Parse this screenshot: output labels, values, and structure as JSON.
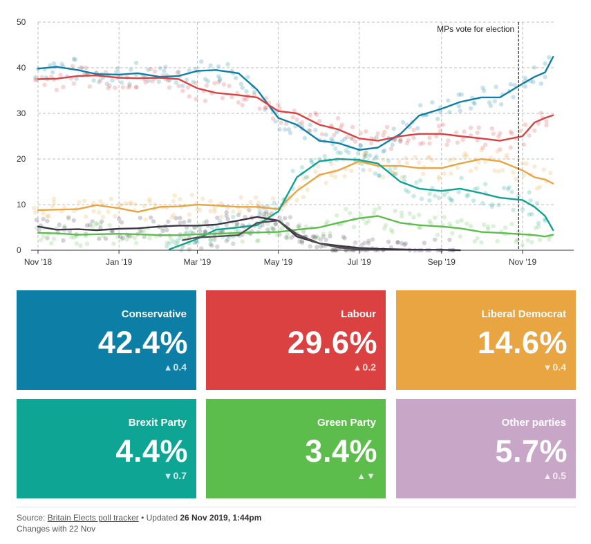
{
  "chart_data": {
    "type": "line",
    "title": "",
    "xlabel": "",
    "ylabel": "",
    "ylim": [
      0,
      50
    ],
    "y_ticks": [
      "0",
      "10",
      "20",
      "30",
      "40",
      "50"
    ],
    "x_tick_labels": [
      "Nov '18",
      "Jan '19",
      "Mar '19",
      "May '19",
      "Jul '19",
      "Sep '19",
      "Nov '19"
    ],
    "x_tick_dates": [
      "2018-11-01",
      "2019-01-01",
      "2019-03-01",
      "2019-05-01",
      "2019-07-01",
      "2019-09-01",
      "2019-11-01"
    ],
    "xlim": [
      "2018-11-01",
      "2019-11-26"
    ],
    "grid": true,
    "annotation": {
      "label": "MPs vote for election",
      "date": "2019-10-29"
    },
    "series": [
      {
        "name": "Conservative",
        "color": "#0d7ea6",
        "points": [
          [
            "2018-11-01",
            39.8
          ],
          [
            "2018-11-15",
            40.2
          ],
          [
            "2018-12-01",
            39.5
          ],
          [
            "2018-12-15",
            38.6
          ],
          [
            "2019-01-01",
            38.5
          ],
          [
            "2019-01-15",
            38.8
          ],
          [
            "2019-02-01",
            38.0
          ],
          [
            "2019-02-15",
            38.2
          ],
          [
            "2019-03-01",
            39.3
          ],
          [
            "2019-03-15",
            39.5
          ],
          [
            "2019-04-01",
            38.8
          ],
          [
            "2019-04-15",
            35.2
          ],
          [
            "2019-05-01",
            29.0
          ],
          [
            "2019-05-15",
            27.5
          ],
          [
            "2019-06-01",
            24.0
          ],
          [
            "2019-06-15",
            23.5
          ],
          [
            "2019-07-01",
            22.0
          ],
          [
            "2019-07-15",
            22.5
          ],
          [
            "2019-08-01",
            25.5
          ],
          [
            "2019-08-15",
            29.5
          ],
          [
            "2019-09-01",
            31.0
          ],
          [
            "2019-09-15",
            32.5
          ],
          [
            "2019-10-01",
            33.5
          ],
          [
            "2019-10-15",
            33.5
          ],
          [
            "2019-11-01",
            36.5
          ],
          [
            "2019-11-10",
            38.0
          ],
          [
            "2019-11-18",
            39.0
          ],
          [
            "2019-11-24",
            42.4
          ]
        ]
      },
      {
        "name": "Labour",
        "color": "#d94242",
        "points": [
          [
            "2018-11-01",
            37.5
          ],
          [
            "2018-11-15",
            37.6
          ],
          [
            "2018-12-01",
            38.2
          ],
          [
            "2018-12-15",
            38.3
          ],
          [
            "2019-01-01",
            37.8
          ],
          [
            "2019-01-15",
            37.7
          ],
          [
            "2019-02-01",
            37.8
          ],
          [
            "2019-02-15",
            37.5
          ],
          [
            "2019-03-01",
            35.5
          ],
          [
            "2019-03-15",
            34.5
          ],
          [
            "2019-04-01",
            34.0
          ],
          [
            "2019-04-15",
            33.5
          ],
          [
            "2019-05-01",
            30.5
          ],
          [
            "2019-05-15",
            30.0
          ],
          [
            "2019-06-01",
            27.5
          ],
          [
            "2019-06-15",
            26.5
          ],
          [
            "2019-07-01",
            24.5
          ],
          [
            "2019-07-15",
            24.0
          ],
          [
            "2019-08-01",
            25.0
          ],
          [
            "2019-08-15",
            25.5
          ],
          [
            "2019-09-01",
            25.5
          ],
          [
            "2019-09-15",
            25.0
          ],
          [
            "2019-10-01",
            24.5
          ],
          [
            "2019-10-15",
            24.0
          ],
          [
            "2019-11-01",
            25.0
          ],
          [
            "2019-11-10",
            28.0
          ],
          [
            "2019-11-18",
            29.0
          ],
          [
            "2019-11-24",
            29.6
          ]
        ]
      },
      {
        "name": "Liberal Democrat",
        "color": "#e8a541",
        "points": [
          [
            "2018-11-01",
            8.8
          ],
          [
            "2018-11-15",
            8.9
          ],
          [
            "2018-12-01",
            9.0
          ],
          [
            "2018-12-15",
            9.9
          ],
          [
            "2019-01-01",
            9.2
          ],
          [
            "2019-01-15",
            8.4
          ],
          [
            "2019-02-01",
            9.5
          ],
          [
            "2019-02-15",
            9.6
          ],
          [
            "2019-03-01",
            10.0
          ],
          [
            "2019-03-15",
            9.8
          ],
          [
            "2019-04-01",
            9.5
          ],
          [
            "2019-04-15",
            9.5
          ],
          [
            "2019-05-01",
            9.0
          ],
          [
            "2019-05-15",
            13.0
          ],
          [
            "2019-06-01",
            16.5
          ],
          [
            "2019-06-15",
            17.5
          ],
          [
            "2019-07-01",
            19.5
          ],
          [
            "2019-07-15",
            18.5
          ],
          [
            "2019-08-01",
            18.5
          ],
          [
            "2019-08-15",
            18.0
          ],
          [
            "2019-09-01",
            18.0
          ],
          [
            "2019-09-15",
            19.0
          ],
          [
            "2019-10-01",
            20.0
          ],
          [
            "2019-10-15",
            19.5
          ],
          [
            "2019-11-01",
            17.5
          ],
          [
            "2019-11-10",
            16.0
          ],
          [
            "2019-11-18",
            15.5
          ],
          [
            "2019-11-24",
            14.6
          ]
        ]
      },
      {
        "name": "Brexit Party",
        "color": "#0fa193",
        "points": [
          [
            "2019-02-08",
            0.2
          ],
          [
            "2019-02-20",
            1.5
          ],
          [
            "2019-03-01",
            2.5
          ],
          [
            "2019-03-15",
            4.5
          ],
          [
            "2019-04-01",
            5.0
          ],
          [
            "2019-04-15",
            5.5
          ],
          [
            "2019-05-01",
            8.5
          ],
          [
            "2019-05-15",
            16.0
          ],
          [
            "2019-06-01",
            19.5
          ],
          [
            "2019-06-15",
            20.0
          ],
          [
            "2019-07-01",
            19.8
          ],
          [
            "2019-07-15",
            19.0
          ],
          [
            "2019-08-01",
            15.0
          ],
          [
            "2019-08-15",
            13.5
          ],
          [
            "2019-09-01",
            13.0
          ],
          [
            "2019-09-15",
            13.5
          ],
          [
            "2019-10-01",
            12.5
          ],
          [
            "2019-10-15",
            11.5
          ],
          [
            "2019-11-01",
            11.0
          ],
          [
            "2019-11-10",
            9.5
          ],
          [
            "2019-11-18",
            7.5
          ],
          [
            "2019-11-24",
            4.4
          ]
        ]
      },
      {
        "name": "Green Party",
        "color": "#5dbd4c",
        "points": [
          [
            "2018-11-01",
            3.8
          ],
          [
            "2018-11-15",
            3.7
          ],
          [
            "2018-12-01",
            3.4
          ],
          [
            "2018-12-15",
            3.5
          ],
          [
            "2019-01-01",
            3.6
          ],
          [
            "2019-01-15",
            3.5
          ],
          [
            "2019-02-01",
            3.3
          ],
          [
            "2019-02-15",
            3.3
          ],
          [
            "2019-03-01",
            3.5
          ],
          [
            "2019-03-15",
            3.6
          ],
          [
            "2019-04-01",
            3.8
          ],
          [
            "2019-04-15",
            3.9
          ],
          [
            "2019-05-01",
            4.0
          ],
          [
            "2019-05-15",
            4.5
          ],
          [
            "2019-06-01",
            5.0
          ],
          [
            "2019-06-15",
            6.0
          ],
          [
            "2019-07-01",
            7.0
          ],
          [
            "2019-07-15",
            7.5
          ],
          [
            "2019-08-01",
            6.0
          ],
          [
            "2019-08-15",
            5.5
          ],
          [
            "2019-09-01",
            5.2
          ],
          [
            "2019-09-15",
            4.8
          ],
          [
            "2019-10-01",
            4.0
          ],
          [
            "2019-10-15",
            3.8
          ],
          [
            "2019-11-01",
            3.5
          ],
          [
            "2019-11-10",
            3.3
          ],
          [
            "2019-11-18",
            3.0
          ],
          [
            "2019-11-24",
            3.4
          ]
        ]
      },
      {
        "name": "Other parties",
        "color": "#3d3349",
        "points": [
          [
            "2018-11-01",
            5.2
          ],
          [
            "2018-11-15",
            4.5
          ],
          [
            "2018-12-01",
            4.6
          ],
          [
            "2018-12-15",
            4.4
          ],
          [
            "2019-01-01",
            4.7
          ],
          [
            "2019-01-15",
            4.8
          ],
          [
            "2019-02-01",
            5.2
          ],
          [
            "2019-02-15",
            5.4
          ],
          [
            "2019-03-01",
            5.4
          ],
          [
            "2019-03-15",
            5.6
          ],
          [
            "2019-04-01",
            6.5
          ],
          [
            "2019-04-15",
            7.3
          ],
          [
            "2019-05-01",
            6.5
          ],
          [
            "2019-05-15",
            3.0
          ],
          [
            "2019-06-01",
            1.5
          ],
          [
            "2019-06-15",
            1.0
          ],
          [
            "2019-07-01",
            0.5
          ],
          [
            "2019-07-15",
            0.3
          ],
          [
            "2019-08-01",
            0.2
          ],
          [
            "2019-08-15",
            0.1
          ],
          [
            "2019-09-01",
            0.1
          ],
          [
            "2019-09-15",
            0.0
          ]
        ]
      },
      {
        "name": "",
        "color": "#4f4f4f",
        "points": [
          [
            "2019-02-18",
            2.2
          ],
          [
            "2019-03-01",
            2.8
          ],
          [
            "2019-03-15",
            3.0
          ],
          [
            "2019-04-01",
            3.3
          ],
          [
            "2019-04-15",
            6.0
          ],
          [
            "2019-05-01",
            6.5
          ],
          [
            "2019-05-15",
            3.5
          ],
          [
            "2019-06-01",
            1.5
          ],
          [
            "2019-06-15",
            0.6
          ],
          [
            "2019-07-01",
            0.2
          ],
          [
            "2019-07-15",
            0.1
          ]
        ]
      }
    ]
  },
  "cards": [
    {
      "party": "Conservative",
      "value": "42.4%",
      "arrow": "up",
      "change": "0.4",
      "color": "#0d7ea6"
    },
    {
      "party": "Labour",
      "value": "29.6%",
      "arrow": "up",
      "change": "0.2",
      "color": "#dc4141"
    },
    {
      "party": "Liberal Democrat",
      "value": "14.6%",
      "arrow": "down",
      "change": "0.4",
      "color": "#e8a541"
    },
    {
      "party": "Brexit Party",
      "value": "4.4%",
      "arrow": "down",
      "change": "0.7",
      "color": "#0fa595"
    },
    {
      "party": "Green Party",
      "value": "3.4%",
      "arrow": "updown",
      "change": "",
      "color": "#5dbd4c"
    },
    {
      "party": "Other parties",
      "value": "5.7%",
      "arrow": "up",
      "change": "0.5",
      "color": "#c8a6c8"
    }
  ],
  "footer": {
    "source_prefix": "Source: ",
    "source_link": "Britain Elects poll tracker",
    "updated_prefix": " • Updated ",
    "updated": "26 Nov 2019, 1:44pm",
    "changes": "Changes with 22 Nov"
  }
}
